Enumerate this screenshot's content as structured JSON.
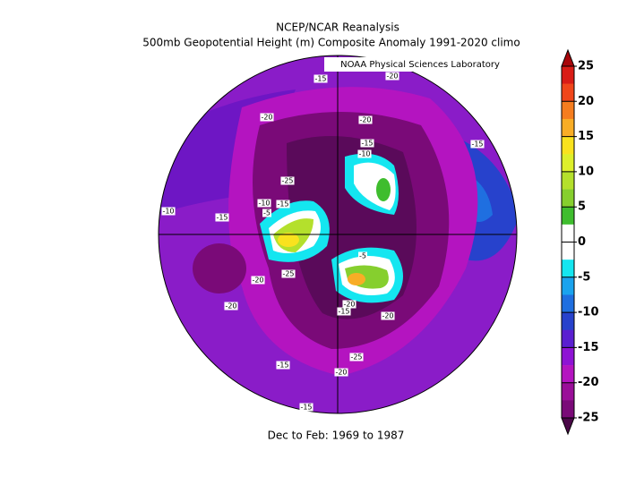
{
  "title": [
    "NCEP/NCAR Reanalysis",
    "500mb Geopotential Height (m) Composite Anomaly 1991-2020 climo"
  ],
  "credit": "NOAA Physical Sciences Laboratory",
  "footer": "Dec to Feb: 1969 to 1987",
  "colorbar": {
    "labels": [
      25,
      20,
      15,
      10,
      5,
      0,
      -5,
      -10,
      -15,
      -20,
      -25
    ],
    "over_color": "#a8060a",
    "under_color": "#4a0848",
    "colors": [
      "#d91c16",
      "#f0461a",
      "#f57d1f",
      "#f8ad26",
      "#f9e21e",
      "#ddef2b",
      "#b4e02c",
      "#86cf2e",
      "#3fbd2e",
      "#ffffff",
      "#ffffff",
      "#14e6f0",
      "#1aa3ee",
      "#1f6fe0",
      "#2742cc",
      "#5a1fd0",
      "#8e13d4",
      "#b414c0",
      "#9a0f99",
      "#7a0a78"
    ]
  },
  "contour_labels": [
    "-15",
    "-20",
    "-20",
    "-20",
    "-15",
    "-10",
    "-15",
    "-25",
    "-10",
    "-15",
    "-5",
    "-10",
    "-15",
    "-5",
    "-20",
    "-25",
    "-20",
    "-20",
    "-15",
    "-20",
    "-25",
    "-15",
    "-20",
    "-15"
  ]
}
